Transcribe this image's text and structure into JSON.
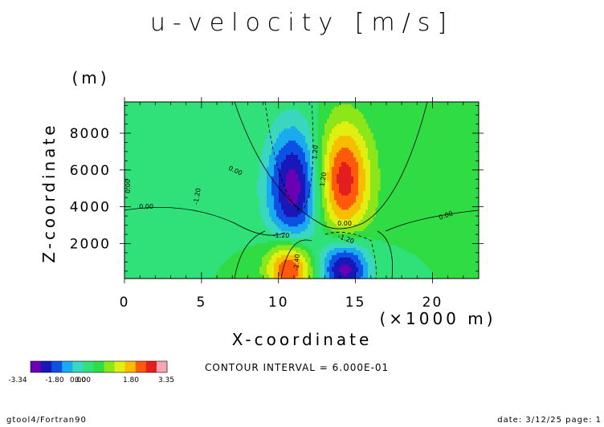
{
  "chart_data": {
    "type": "heatmap",
    "title": "u-velocity [m/s]",
    "xlabel": "X-coordinate",
    "x_unit_label": "(×1000 m)",
    "ylabel": "Z-coordinate",
    "y_unit_label": "(m)",
    "xlim": [
      0,
      23
    ],
    "ylim": [
      100,
      9700
    ],
    "x_ticks": [
      "0",
      "5",
      "10",
      "15",
      "20"
    ],
    "y_ticks": [
      "2000",
      "4000",
      "6000",
      "8000"
    ],
    "contour_interval_text": "CONTOUR INTERVAL = 6.000E-01",
    "contour_labels": [
      "0.00",
      "0.00",
      "0.00",
      "0.00",
      "0.00",
      "-1.20",
      "1.20",
      "-1.20",
      "-1.20",
      "1.20",
      "-2.40"
    ],
    "colorbar": {
      "levels": [
        -3.34,
        -3.0,
        -2.4,
        -1.8,
        -1.2,
        -0.6,
        0.0,
        0.6,
        1.2,
        1.8,
        2.4,
        3.0,
        3.35
      ],
      "colors": [
        "#6a00b4",
        "#1818b8",
        "#0d50e6",
        "#1aaaf0",
        "#3ad6c0",
        "#30e078",
        "#30dc44",
        "#8ce61a",
        "#e0ee10",
        "#f8bc00",
        "#ff5a0a",
        "#e41e1e",
        "#f7a7b0"
      ],
      "tick_labels": [
        "-3.34",
        "-1.80",
        "0.00",
        "0.00",
        "1.80",
        "3.35"
      ]
    },
    "features": [
      {
        "name": "upper negative cell",
        "x": 11.0,
        "z": 5100,
        "peak": -3.3
      },
      {
        "name": "upper positive cell",
        "x": 14.2,
        "z": 5500,
        "peak": 3.3
      },
      {
        "name": "lower positive cell",
        "x": 10.7,
        "z": 700,
        "peak": 3.35
      },
      {
        "name": "lower negative cell",
        "x": 14.3,
        "z": 700,
        "peak": -3.3
      }
    ]
  },
  "footer": {
    "left": "gtool4/Fortran90",
    "right": "date: 3/12/25 page: 1"
  }
}
